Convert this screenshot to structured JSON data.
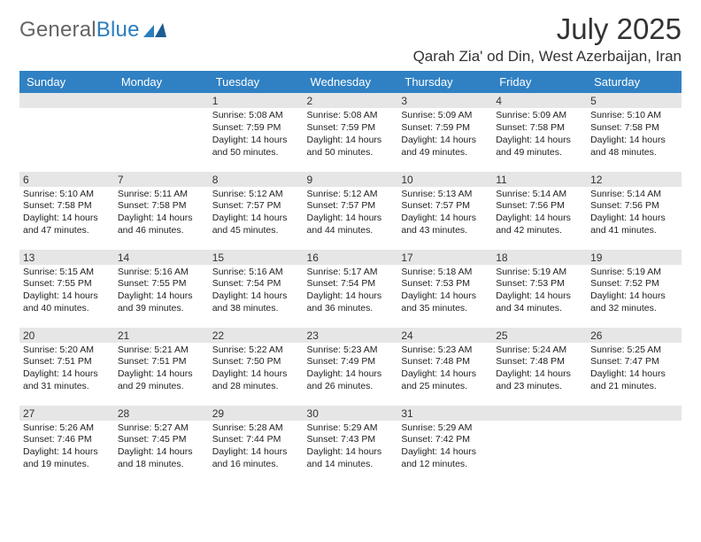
{
  "brand": {
    "name_a": "General",
    "name_b": "Blue"
  },
  "title": "July 2025",
  "location": "Qarah Zia' od Din, West Azerbaijan, Iran",
  "colors": {
    "header_bg": "#3081c3",
    "header_text": "#ffffff",
    "daynum_shade": "#e6e6e6",
    "text": "#222222",
    "logo_gray": "#656565",
    "logo_blue": "#2a7ebf"
  },
  "weekday_labels": [
    "Sunday",
    "Monday",
    "Tuesday",
    "Wednesday",
    "Thursday",
    "Friday",
    "Saturday"
  ],
  "weeks": [
    [
      null,
      null,
      {
        "n": 1,
        "sunrise": "5:08 AM",
        "sunset": "7:59 PM",
        "dlh": 14,
        "dlm": 50
      },
      {
        "n": 2,
        "sunrise": "5:08 AM",
        "sunset": "7:59 PM",
        "dlh": 14,
        "dlm": 50
      },
      {
        "n": 3,
        "sunrise": "5:09 AM",
        "sunset": "7:59 PM",
        "dlh": 14,
        "dlm": 49
      },
      {
        "n": 4,
        "sunrise": "5:09 AM",
        "sunset": "7:58 PM",
        "dlh": 14,
        "dlm": 49
      },
      {
        "n": 5,
        "sunrise": "5:10 AM",
        "sunset": "7:58 PM",
        "dlh": 14,
        "dlm": 48
      }
    ],
    [
      {
        "n": 6,
        "sunrise": "5:10 AM",
        "sunset": "7:58 PM",
        "dlh": 14,
        "dlm": 47
      },
      {
        "n": 7,
        "sunrise": "5:11 AM",
        "sunset": "7:58 PM",
        "dlh": 14,
        "dlm": 46
      },
      {
        "n": 8,
        "sunrise": "5:12 AM",
        "sunset": "7:57 PM",
        "dlh": 14,
        "dlm": 45
      },
      {
        "n": 9,
        "sunrise": "5:12 AM",
        "sunset": "7:57 PM",
        "dlh": 14,
        "dlm": 44
      },
      {
        "n": 10,
        "sunrise": "5:13 AM",
        "sunset": "7:57 PM",
        "dlh": 14,
        "dlm": 43
      },
      {
        "n": 11,
        "sunrise": "5:14 AM",
        "sunset": "7:56 PM",
        "dlh": 14,
        "dlm": 42
      },
      {
        "n": 12,
        "sunrise": "5:14 AM",
        "sunset": "7:56 PM",
        "dlh": 14,
        "dlm": 41
      }
    ],
    [
      {
        "n": 13,
        "sunrise": "5:15 AM",
        "sunset": "7:55 PM",
        "dlh": 14,
        "dlm": 40
      },
      {
        "n": 14,
        "sunrise": "5:16 AM",
        "sunset": "7:55 PM",
        "dlh": 14,
        "dlm": 39
      },
      {
        "n": 15,
        "sunrise": "5:16 AM",
        "sunset": "7:54 PM",
        "dlh": 14,
        "dlm": 38
      },
      {
        "n": 16,
        "sunrise": "5:17 AM",
        "sunset": "7:54 PM",
        "dlh": 14,
        "dlm": 36
      },
      {
        "n": 17,
        "sunrise": "5:18 AM",
        "sunset": "7:53 PM",
        "dlh": 14,
        "dlm": 35
      },
      {
        "n": 18,
        "sunrise": "5:19 AM",
        "sunset": "7:53 PM",
        "dlh": 14,
        "dlm": 34
      },
      {
        "n": 19,
        "sunrise": "5:19 AM",
        "sunset": "7:52 PM",
        "dlh": 14,
        "dlm": 32
      }
    ],
    [
      {
        "n": 20,
        "sunrise": "5:20 AM",
        "sunset": "7:51 PM",
        "dlh": 14,
        "dlm": 31
      },
      {
        "n": 21,
        "sunrise": "5:21 AM",
        "sunset": "7:51 PM",
        "dlh": 14,
        "dlm": 29
      },
      {
        "n": 22,
        "sunrise": "5:22 AM",
        "sunset": "7:50 PM",
        "dlh": 14,
        "dlm": 28
      },
      {
        "n": 23,
        "sunrise": "5:23 AM",
        "sunset": "7:49 PM",
        "dlh": 14,
        "dlm": 26
      },
      {
        "n": 24,
        "sunrise": "5:23 AM",
        "sunset": "7:48 PM",
        "dlh": 14,
        "dlm": 25
      },
      {
        "n": 25,
        "sunrise": "5:24 AM",
        "sunset": "7:48 PM",
        "dlh": 14,
        "dlm": 23
      },
      {
        "n": 26,
        "sunrise": "5:25 AM",
        "sunset": "7:47 PM",
        "dlh": 14,
        "dlm": 21
      }
    ],
    [
      {
        "n": 27,
        "sunrise": "5:26 AM",
        "sunset": "7:46 PM",
        "dlh": 14,
        "dlm": 19
      },
      {
        "n": 28,
        "sunrise": "5:27 AM",
        "sunset": "7:45 PM",
        "dlh": 14,
        "dlm": 18
      },
      {
        "n": 29,
        "sunrise": "5:28 AM",
        "sunset": "7:44 PM",
        "dlh": 14,
        "dlm": 16
      },
      {
        "n": 30,
        "sunrise": "5:29 AM",
        "sunset": "7:43 PM",
        "dlh": 14,
        "dlm": 14
      },
      {
        "n": 31,
        "sunrise": "5:29 AM",
        "sunset": "7:42 PM",
        "dlh": 14,
        "dlm": 12
      },
      null,
      null
    ]
  ],
  "labels": {
    "sunrise": "Sunrise:",
    "sunset": "Sunset:",
    "daylight": "Daylight:",
    "hours_word": "hours",
    "and_word": "and",
    "minutes_word": "minutes."
  }
}
